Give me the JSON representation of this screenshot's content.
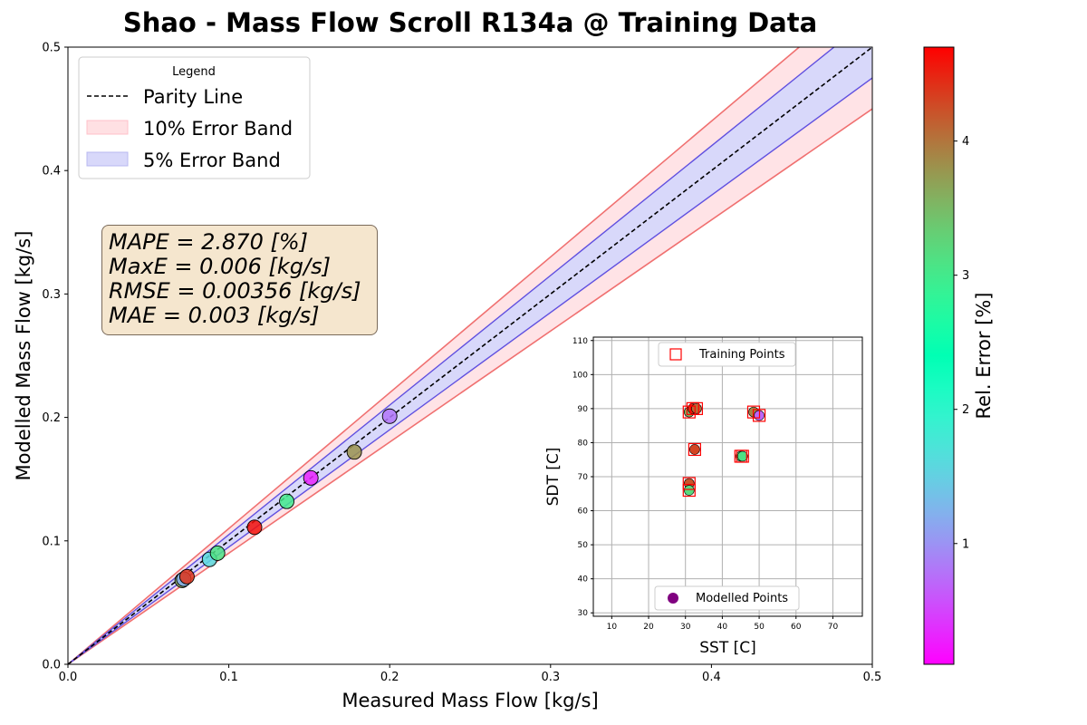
{
  "title": "Shao - Mass Flow Scroll R134a @ Training Data",
  "metrics": {
    "mape": "MAPE = 2.870 [%]",
    "maxe": "MaxE = 0.006 [kg/s]",
    "rmse": "RMSE = 0.00356 [kg/s]",
    "mae": "MAE = 0.003 [kg/s]"
  },
  "colorbar": {
    "label": "Rel. Error [%]",
    "ticks": [
      1,
      2,
      3,
      4
    ],
    "min": 0.1,
    "max": 4.7
  },
  "colors": {
    "parity": "#000000",
    "band10_fill": "#ffe0e3",
    "band10_line": "#f07070",
    "band5_fill": "#d8d8fa",
    "band5_line": "#6050e0",
    "train_marker": "#ff0000",
    "model_marker": "#800080"
  },
  "chart_data": [
    {
      "type": "scatter",
      "title": "Shao - Mass Flow Scroll R134a @ Training Data",
      "xlabel": "Measured Mass Flow [kg/s]",
      "ylabel": "Modelled Mass Flow [kg/s]",
      "xlim": [
        0,
        0.5
      ],
      "ylim": [
        0,
        0.5
      ],
      "xticks": [
        0.0,
        0.1,
        0.2,
        0.3,
        0.4,
        0.5
      ],
      "yticks": [
        0.0,
        0.1,
        0.2,
        0.3,
        0.4,
        0.5
      ],
      "legend": {
        "title": "Legend",
        "position": "top-left",
        "entries": [
          "Parity Line",
          "10% Error Band",
          "5% Error Band"
        ]
      },
      "bands_percent": [
        10,
        5
      ],
      "points": [
        {
          "x": 0.071,
          "y": 0.068,
          "err": 3.6
        },
        {
          "x": 0.072,
          "y": 0.069,
          "err": 1.2
        },
        {
          "x": 0.074,
          "y": 0.071,
          "err": 4.4
        },
        {
          "x": 0.088,
          "y": 0.085,
          "err": 1.6
        },
        {
          "x": 0.093,
          "y": 0.09,
          "err": 3.1
        },
        {
          "x": 0.116,
          "y": 0.111,
          "err": 4.6
        },
        {
          "x": 0.136,
          "y": 0.132,
          "err": 3.0
        },
        {
          "x": 0.151,
          "y": 0.151,
          "err": 0.3
        },
        {
          "x": 0.178,
          "y": 0.172,
          "err": 3.8
        },
        {
          "x": 0.2,
          "y": 0.201,
          "err": 0.8
        }
      ]
    },
    {
      "type": "scatter",
      "xlabel": "SST [C]",
      "ylabel": "SDT [C]",
      "xlim": [
        5,
        78
      ],
      "ylim": [
        29,
        111
      ],
      "xticks": [
        10,
        20,
        30,
        40,
        50,
        60,
        70
      ],
      "yticks": [
        30,
        40,
        50,
        60,
        70,
        80,
        90,
        100,
        110
      ],
      "grid": true,
      "legend_top": "Training Points",
      "legend_bottom": "Modelled Points",
      "training_points": [
        {
          "x": 31,
          "y": 89
        },
        {
          "x": 32,
          "y": 90
        },
        {
          "x": 33,
          "y": 90
        },
        {
          "x": 48.5,
          "y": 89
        },
        {
          "x": 50,
          "y": 88
        },
        {
          "x": 32.5,
          "y": 78
        },
        {
          "x": 45,
          "y": 76
        },
        {
          "x": 45.5,
          "y": 76
        },
        {
          "x": 31,
          "y": 68
        },
        {
          "x": 31,
          "y": 66
        }
      ],
      "modelled_points": [
        {
          "x": 31,
          "y": 89,
          "err": 3.6
        },
        {
          "x": 32,
          "y": 90,
          "err": 4.5
        },
        {
          "x": 33,
          "y": 90,
          "err": 4.1
        },
        {
          "x": 48.5,
          "y": 89,
          "err": 3.9
        },
        {
          "x": 50,
          "y": 88,
          "err": 0.7
        },
        {
          "x": 32.5,
          "y": 78,
          "err": 4.3
        },
        {
          "x": 45,
          "y": 76,
          "err": 3.3
        },
        {
          "x": 45.5,
          "y": 76,
          "err": 3.1
        },
        {
          "x": 31,
          "y": 68,
          "err": 4.2
        },
        {
          "x": 31,
          "y": 66,
          "err": 3.2
        }
      ]
    }
  ]
}
